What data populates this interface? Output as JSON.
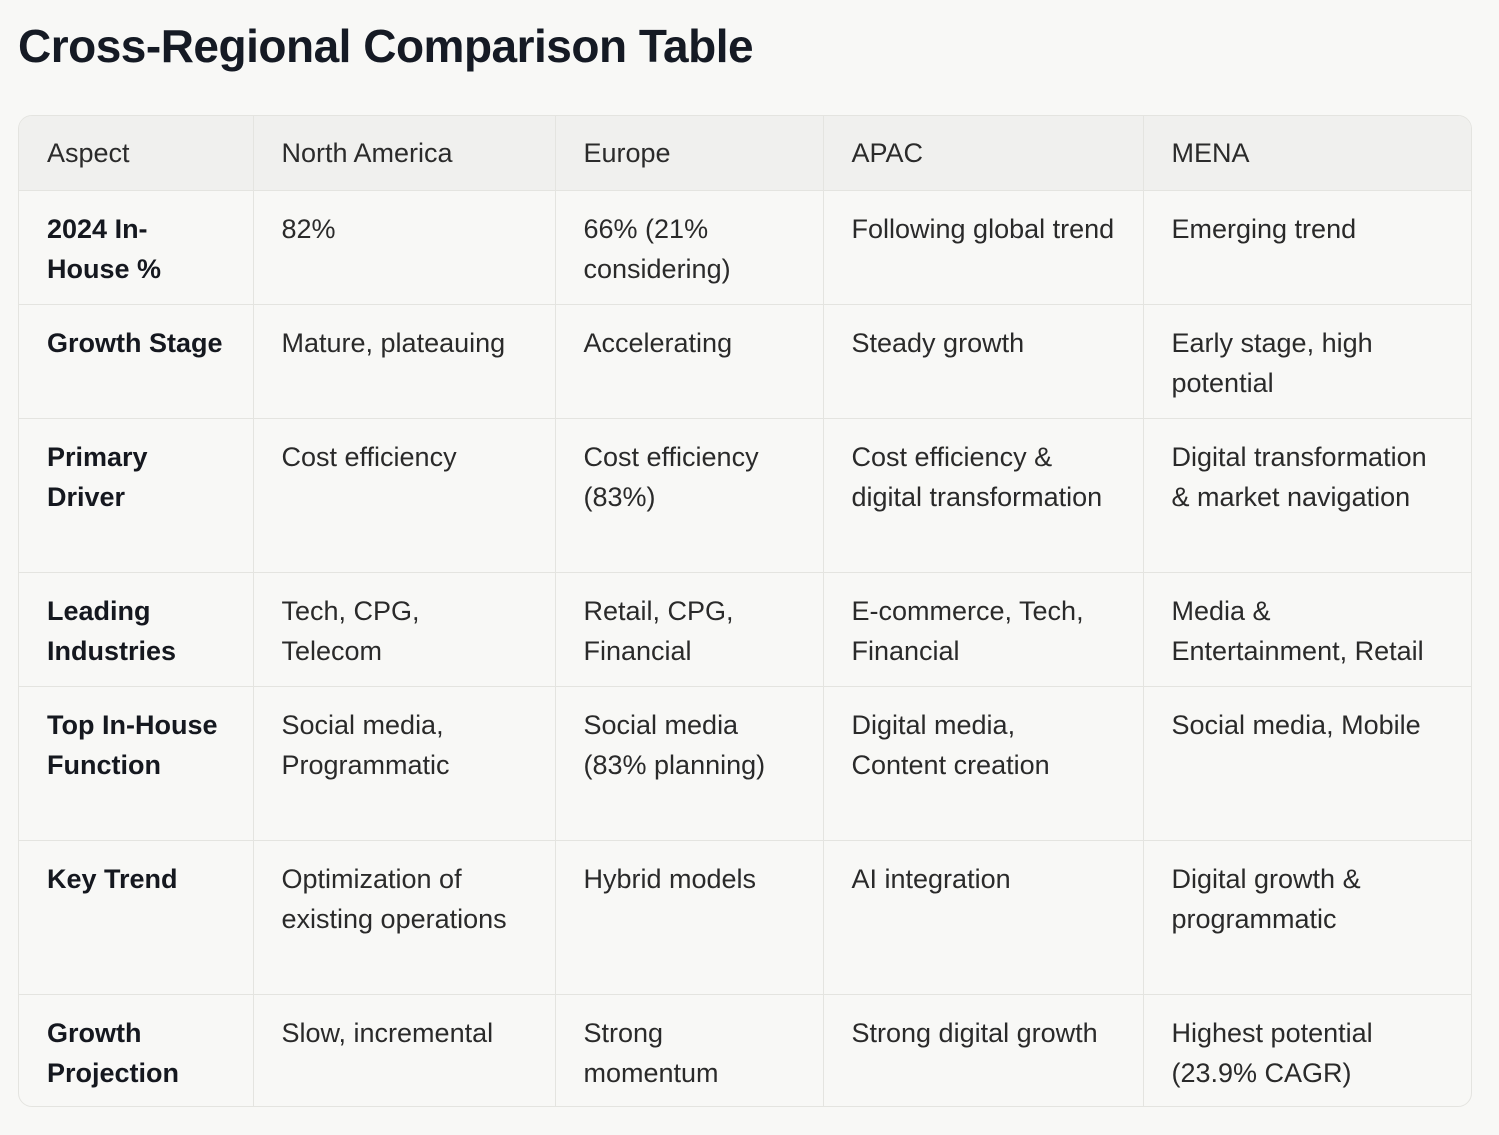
{
  "page": {
    "title": "Cross-Regional Comparison Table"
  },
  "table": {
    "headers": [
      "Aspect",
      "North America",
      "Europe",
      "APAC",
      "MENA"
    ],
    "rows": [
      {
        "aspect": "2024 In-House %",
        "north_america": "82%",
        "europe": "66% (21% considering)",
        "apac": "Following global trend",
        "mena": "Emerging trend"
      },
      {
        "aspect": "Growth Stage",
        "north_america": "Mature, plateauing",
        "europe": "Accelerating",
        "apac": "Steady growth",
        "mena": "Early stage, high potential"
      },
      {
        "aspect": "Primary Driver",
        "north_america": "Cost efficiency",
        "europe": "Cost efficiency (83%)",
        "apac": "Cost efficiency & digital transformation",
        "mena": "Digital transformation & market navigation"
      },
      {
        "aspect": "Leading Industries",
        "north_america": "Tech, CPG, Telecom",
        "europe": "Retail, CPG, Financial",
        "apac": "E-commerce, Tech, Financial",
        "mena": "Media & Entertainment, Retail"
      },
      {
        "aspect": "Top In-House Function",
        "north_america": "Social media, Programmatic",
        "europe": "Social media (83% planning)",
        "apac": "Digital media, Content creation",
        "mena": "Social media, Mobile"
      },
      {
        "aspect": "Key Trend",
        "north_america": "Optimization of existing operations",
        "europe": "Hybrid models",
        "apac": "AI integration",
        "mena": "Digital growth & programmatic"
      },
      {
        "aspect": "Growth Projection",
        "north_america": "Slow, incremental",
        "europe": "Strong momentum",
        "apac": "Strong digital growth",
        "mena": "Highest potential (23.9% CAGR)"
      }
    ]
  }
}
